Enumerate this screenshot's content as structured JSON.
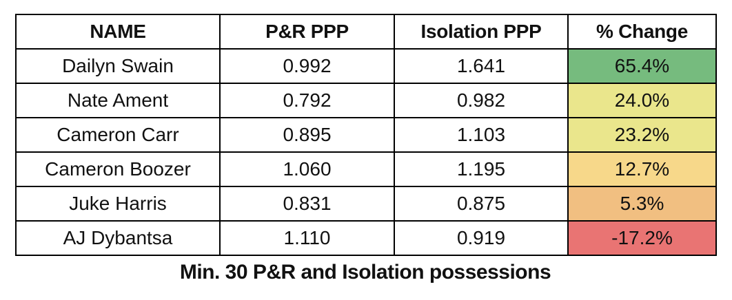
{
  "caption": "Min. 30 P&R and Isolation possessions",
  "colors": {
    "border": "#000000",
    "background": "#ffffff",
    "scale_green": "#76bb7e",
    "scale_yellow": "#eae68c",
    "scale_pale_orange": "#f7d88a",
    "scale_orange": "#f1bf81",
    "scale_red": "#e97473"
  },
  "chart_data": {
    "type": "table",
    "title": "",
    "columns": [
      "NAME",
      "P&R PPP",
      "Isolation PPP",
      "% Change"
    ],
    "rows": [
      {
        "name": "Dailyn Swain",
        "pr_ppp": "0.992",
        "iso_ppp": "1.641",
        "pct_change": "65.4%",
        "pct_change_value": 65.4,
        "pct_color": "#76bb7e"
      },
      {
        "name": "Nate Ament",
        "pr_ppp": "0.792",
        "iso_ppp": "0.982",
        "pct_change": "24.0%",
        "pct_change_value": 24.0,
        "pct_color": "#eae68c"
      },
      {
        "name": "Cameron Carr",
        "pr_ppp": "0.895",
        "iso_ppp": "1.103",
        "pct_change": "23.2%",
        "pct_change_value": 23.2,
        "pct_color": "#eae68c"
      },
      {
        "name": "Cameron Boozer",
        "pr_ppp": "1.060",
        "iso_ppp": "1.195",
        "pct_change": "12.7%",
        "pct_change_value": 12.7,
        "pct_color": "#f7d88a"
      },
      {
        "name": "Juke Harris",
        "pr_ppp": "0.831",
        "iso_ppp": "0.875",
        "pct_change": "5.3%",
        "pct_change_value": 5.3,
        "pct_color": "#f1bf81"
      },
      {
        "name": "AJ Dybantsa",
        "pr_ppp": "1.110",
        "iso_ppp": "0.919",
        "pct_change": "-17.2%",
        "pct_change_value": -17.2,
        "pct_color": "#e97473"
      }
    ],
    "note": "Min. 30 P&R and Isolation possessions",
    "layout": {
      "grid": "on",
      "conditional_format_column": "% Change",
      "scale": "red-yellow-green"
    }
  }
}
